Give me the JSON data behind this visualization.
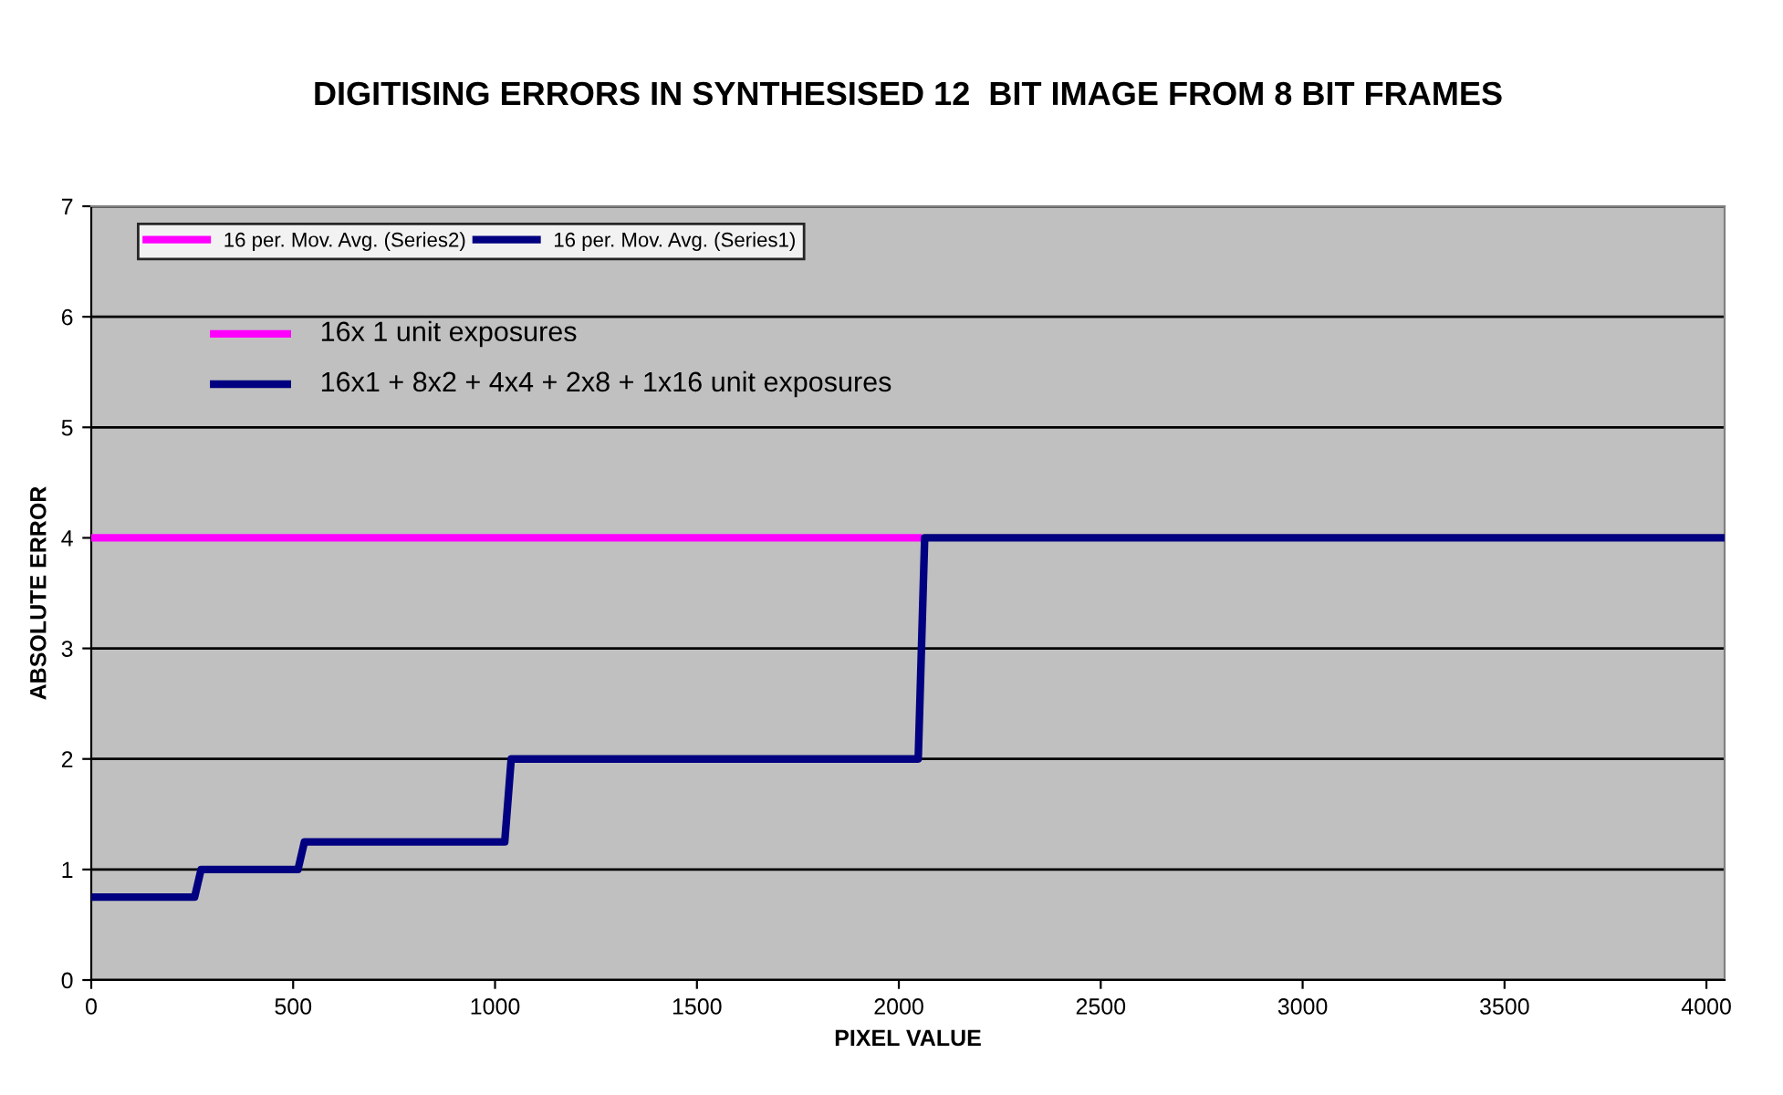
{
  "chart_data": {
    "type": "line",
    "title": "DIGITISING ERRORS IN SYNTHESISED 12  BIT IMAGE FROM 8 BIT FRAMES",
    "xlabel": "PIXEL VALUE",
    "ylabel": "ABSOLUTE ERROR",
    "series": [
      {
        "name": "16 per. Mov. Avg. (Series2)",
        "color": "#ff00ff",
        "x": [
          0,
          2048
        ],
        "values": [
          4,
          4
        ]
      },
      {
        "name": "16 per. Mov. Avg. (Series1)",
        "color": "#000080",
        "x": [
          0,
          256,
          272,
          512,
          528,
          1024,
          1040,
          2048,
          2064,
          4045
        ],
        "values": [
          0.75,
          0.75,
          1,
          1,
          1.25,
          1.25,
          2,
          2,
          4,
          4
        ]
      }
    ],
    "annotations": [
      "16x 1 unit exposures",
      "16x1 + 8x2 + 4x4 + 2x8 + 1x16 unit exposures"
    ],
    "xlim": [
      0,
      4045
    ],
    "xticks": [
      0,
      500,
      1000,
      1500,
      2000,
      2500,
      3000,
      3500,
      4000
    ],
    "ylim": [
      0,
      7
    ],
    "yticks": [
      0,
      1,
      2,
      3,
      4,
      5,
      6,
      7
    ],
    "grid": "y",
    "legend": "top left",
    "marker": "none",
    "line_style": "solid"
  }
}
